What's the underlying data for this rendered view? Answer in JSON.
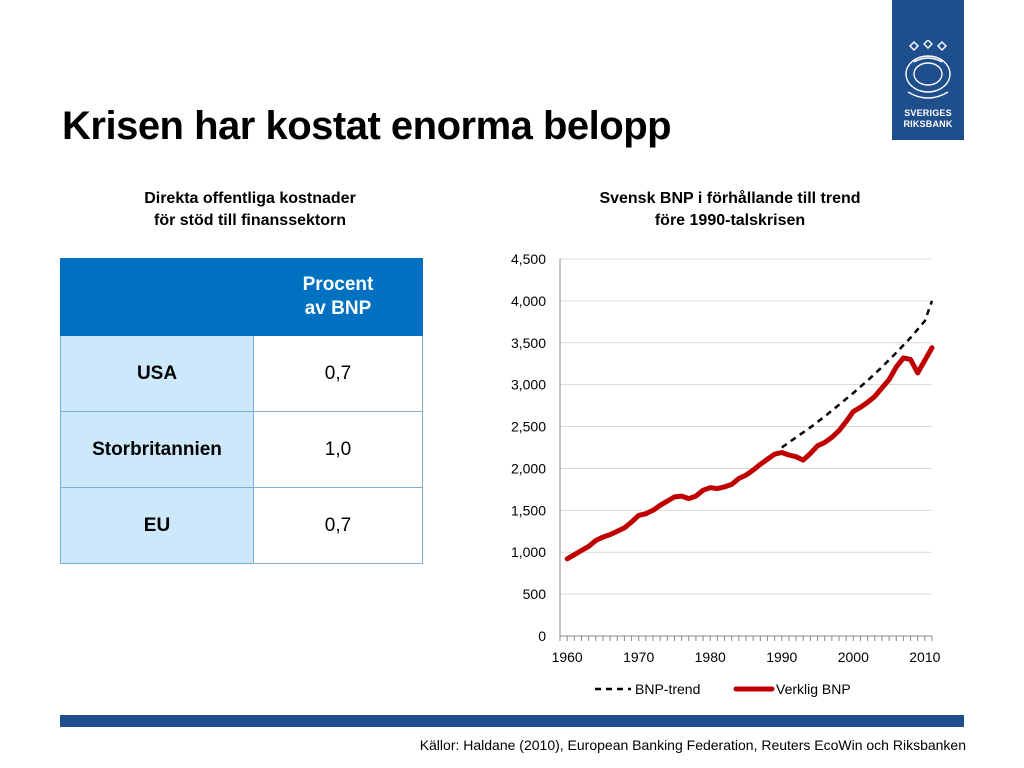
{
  "header": {
    "title": "Krisen har kostat enorma belopp",
    "logo_text_1": "SVERIGES",
    "logo_text_2": "RIKSBANK"
  },
  "left_panel": {
    "heading_line1": "Direkta offentliga kostnader",
    "heading_line2": "för stöd till finanssektorn",
    "table": {
      "column_header_line1": "Procent",
      "column_header_line2": "av BNP",
      "rows": [
        {
          "label": "USA",
          "value": "0,7"
        },
        {
          "label": "Storbritannien",
          "value": "1,0"
        },
        {
          "label": "EU",
          "value": "0,7"
        }
      ]
    }
  },
  "chart_data": {
    "type": "line",
    "title": "Svensk BNP i förhållande till trend före 1990-talskrisen",
    "title_line1": "Svensk BNP i förhållande till trend",
    "title_line2": "före 1990-talskrisen",
    "xlabel": "",
    "ylabel": "",
    "xlim": [
      1959,
      2011
    ],
    "ylim": [
      0,
      4500
    ],
    "x_ticks": [
      "1960",
      "1970",
      "1980",
      "1990",
      "2000",
      "2010"
    ],
    "x_tick_values": [
      1960,
      1970,
      1980,
      1990,
      2000,
      2010
    ],
    "y_ticks": [
      "0",
      "500",
      "1,000",
      "1,500",
      "2,000",
      "2,500",
      "3,000",
      "3,500",
      "4,000",
      "4,500"
    ],
    "y_tick_values": [
      0,
      500,
      1000,
      1500,
      2000,
      2500,
      3000,
      3500,
      4000,
      4500
    ],
    "grid": true,
    "legend_position": "bottom",
    "series": [
      {
        "name": "BNP-trend",
        "style": "dashed",
        "color": "#000000",
        "x": [
          1990,
          1992,
          1994,
          1996,
          1998,
          2000,
          2002,
          2004,
          2006,
          2008,
          2010,
          2011
        ],
        "y": [
          2250,
          2370,
          2490,
          2620,
          2760,
          2900,
          3050,
          3210,
          3380,
          3560,
          3760,
          4000
        ]
      },
      {
        "name": "Verklig BNP",
        "style": "solid",
        "color": "#c00000",
        "x": [
          1960,
          1961,
          1962,
          1963,
          1964,
          1965,
          1966,
          1967,
          1968,
          1969,
          1970,
          1971,
          1972,
          1973,
          1974,
          1975,
          1976,
          1977,
          1978,
          1979,
          1980,
          1981,
          1982,
          1983,
          1984,
          1985,
          1986,
          1987,
          1988,
          1989,
          1990,
          1991,
          1992,
          1993,
          1994,
          1995,
          1996,
          1997,
          1998,
          1999,
          2000,
          2001,
          2002,
          2003,
          2004,
          2005,
          2006,
          2007,
          2008,
          2009,
          2010,
          2011
        ],
        "y": [
          920,
          970,
          1020,
          1070,
          1140,
          1180,
          1210,
          1250,
          1290,
          1360,
          1440,
          1460,
          1500,
          1560,
          1610,
          1660,
          1670,
          1640,
          1670,
          1740,
          1770,
          1760,
          1780,
          1810,
          1880,
          1920,
          1980,
          2050,
          2110,
          2170,
          2190,
          2160,
          2140,
          2100,
          2180,
          2270,
          2310,
          2370,
          2450,
          2560,
          2680,
          2730,
          2790,
          2860,
          2960,
          3060,
          3210,
          3320,
          3300,
          3140,
          3290,
          3440
        ]
      }
    ]
  },
  "footer": {
    "source": "Källor: Haldane (2010), European Banking Federation, Reuters EcoWin och Riksbanken"
  },
  "colors": {
    "brand_blue": "#1f4e8c",
    "table_header": "#0070c0",
    "table_label": "#cde7fb",
    "actual_line": "#c00000"
  }
}
